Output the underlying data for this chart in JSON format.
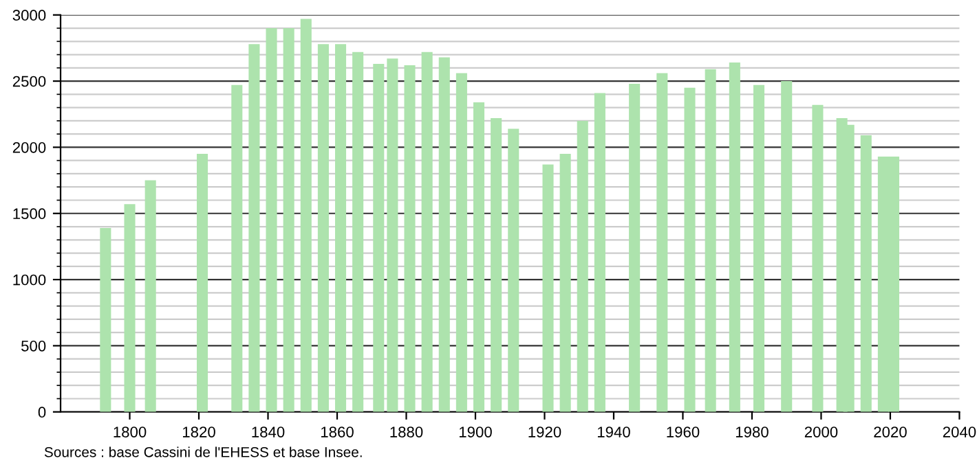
{
  "chart_data": {
    "type": "bar",
    "x": [
      1793,
      1800,
      1806,
      1821,
      1831,
      1836,
      1841,
      1846,
      1851,
      1856,
      1861,
      1866,
      1872,
      1876,
      1881,
      1886,
      1891,
      1896,
      1901,
      1906,
      1911,
      1921,
      1926,
      1931,
      1936,
      1946,
      1954,
      1962,
      1968,
      1975,
      1982,
      1990,
      1999,
      2006,
      2008,
      2013,
      2018,
      2021
    ],
    "values": [
      1390,
      1570,
      1750,
      1950,
      2470,
      2780,
      2900,
      2900,
      2970,
      2780,
      2780,
      2720,
      2630,
      2670,
      2620,
      2720,
      2680,
      2560,
      2340,
      2220,
      2140,
      1870,
      1950,
      2200,
      2410,
      2480,
      2560,
      2450,
      2590,
      2640,
      2470,
      2500,
      2320,
      2220,
      2170,
      2090,
      1930,
      1930
    ],
    "color": "#ade3ad",
    "xlim": [
      1780,
      2040
    ],
    "xticks": [
      1800,
      1820,
      1840,
      1860,
      1880,
      1900,
      1920,
      1940,
      1960,
      1980,
      2000,
      2020,
      2040
    ],
    "ylim": [
      0,
      3000
    ],
    "yticks": [
      0,
      500,
      1000,
      1500,
      2000,
      2500,
      3000
    ],
    "grid": "y",
    "annotations": [
      "Sources : base Cassini de l'EHESS et base Insee."
    ]
  }
}
